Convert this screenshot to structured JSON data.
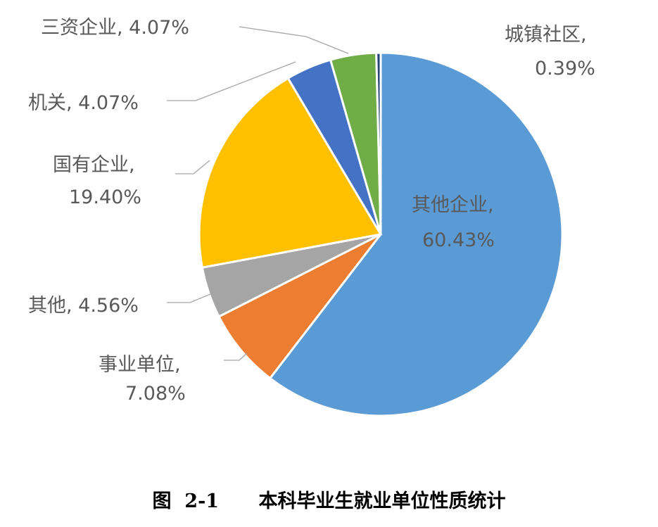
{
  "chart_data": {
    "type": "pie",
    "title": "",
    "start_angle_deg": 0,
    "direction": "clockwise",
    "slices": [
      {
        "label": "其他企业",
        "value": 60.43,
        "display": "60.43%",
        "color": "#5b9bd5",
        "label_style": "inside"
      },
      {
        "label": "事业单位",
        "value": 7.08,
        "display": "7.08%",
        "color": "#ed7d31",
        "label_style": "outside"
      },
      {
        "label": "其他",
        "value": 4.56,
        "display": "4.56%",
        "color": "#a5a5a5",
        "label_style": "outside"
      },
      {
        "label": "国有企业",
        "value": 19.4,
        "display": "19.40%",
        "color": "#ffc000",
        "label_style": "outside"
      },
      {
        "label": "机关",
        "value": 4.07,
        "display": "4.07%",
        "color": "#4472c4",
        "label_style": "outside"
      },
      {
        "label": "三资企业",
        "value": 4.07,
        "display": "4.07%",
        "color": "#70ad47",
        "label_style": "outside"
      },
      {
        "label": "城镇社区",
        "value": 0.39,
        "display": "0.39%",
        "color": "#264478",
        "label_style": "outside"
      }
    ],
    "legend": "none"
  },
  "caption": {
    "figure_no": "图  2-1",
    "text": "本科毕业生就业单位性质统计"
  }
}
